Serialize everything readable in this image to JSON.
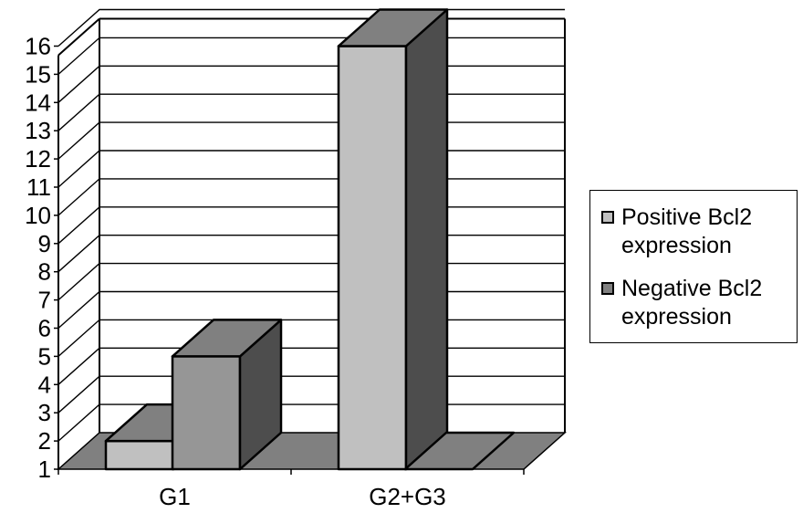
{
  "chart_data": {
    "type": "bar",
    "three_d": true,
    "categories": [
      "G1",
      "G2+G3"
    ],
    "series": [
      {
        "name": "Positive Bcl2 expression",
        "values": [
          2,
          16
        ],
        "color": "#c0c0c0"
      },
      {
        "name": "Negative Bcl2 expression",
        "values": [
          5,
          1
        ],
        "color": "#808080"
      }
    ],
    "y_ticks": [
      "1",
      "2",
      "3",
      "4",
      "5",
      "6",
      "7",
      "8",
      "9",
      "10",
      "11",
      "12",
      "13",
      "14",
      "15",
      "16"
    ],
    "ylim": [
      1,
      16
    ],
    "grid": true,
    "legend_position": "right",
    "colors": {
      "positive_front": "#c0c0c0",
      "negative_front": "#969696",
      "top": "#808080",
      "side": "#4d4d4d",
      "floor": "#808080"
    }
  }
}
